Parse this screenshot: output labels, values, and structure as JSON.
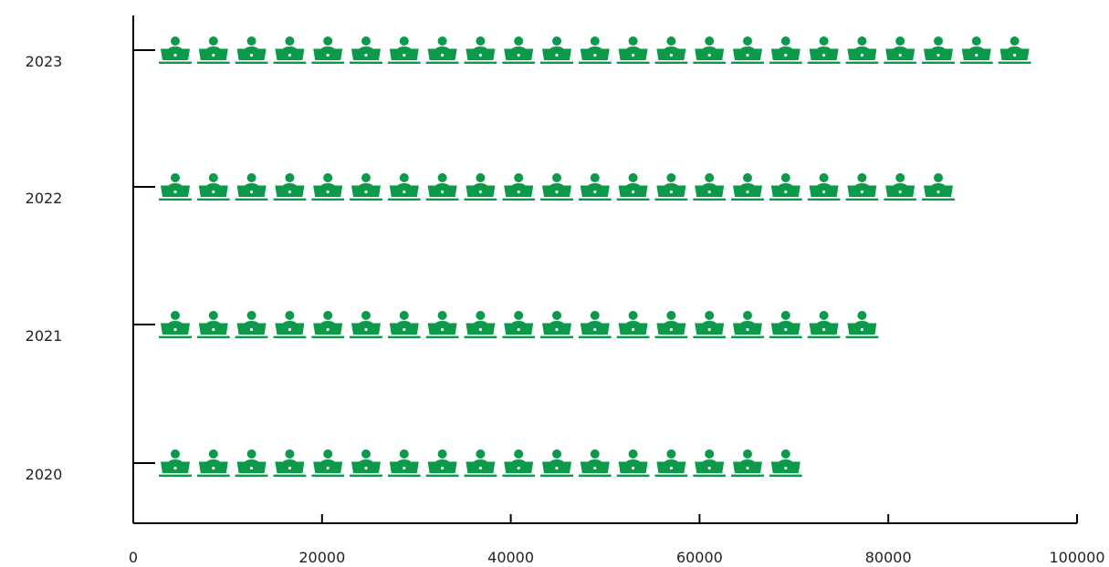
{
  "chart_data": {
    "type": "bar",
    "orientation": "horizontal",
    "style": "pictograph",
    "icon": "person-at-laptop-icon",
    "categories": [
      "2020",
      "2021",
      "2022",
      "2023"
    ],
    "values": [
      66000,
      74000,
      82000,
      90000
    ],
    "icon_unit": 4000,
    "xlim": [
      0,
      100000
    ],
    "x_ticks": [
      "0",
      "20000",
      "40000",
      "60000",
      "80000",
      "100000"
    ],
    "title": "",
    "xlabel": "",
    "ylabel": "",
    "grid": false,
    "legend": "none",
    "colors": {
      "icon": "#0a9a4a",
      "axis": "#000000",
      "text": "#222222"
    }
  }
}
